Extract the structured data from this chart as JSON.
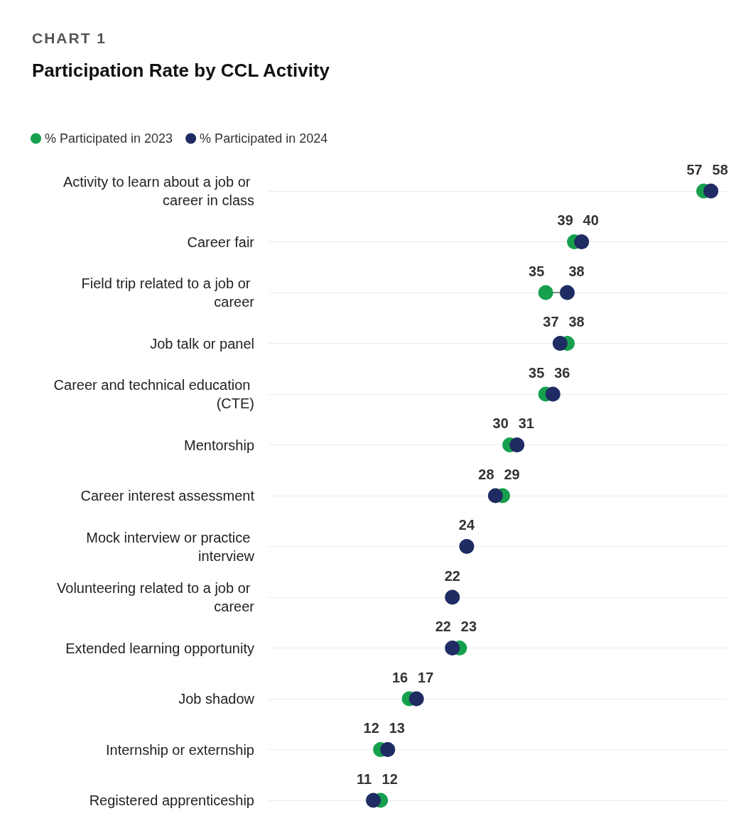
{
  "chart_data": {
    "type": "scatter",
    "subtitle": "CHART 1",
    "title": "Participation Rate by CCL Activity",
    "orientation": "horizontal",
    "data_labels": true,
    "legend": "top left",
    "grid": "y",
    "marker": "circle",
    "categories": [
      "Activity to learn about a job or career in class",
      "Career fair",
      "Field trip related to a job or career",
      "Job talk or panel",
      "Career and technical education (CTE)",
      "Mentorship",
      "Career interest assessment",
      "Mock interview or practice interview",
      "Volunteering related to a job or career",
      "Extended learning opportunity",
      "Job shadow",
      "Internship or externship",
      "Registered apprenticeship"
    ],
    "series": [
      {
        "name": "% Participated in 2023",
        "color": "#16a04e",
        "values": [
          57,
          39,
          35,
          38,
          35,
          30,
          29,
          null,
          null,
          23,
          16,
          12,
          12
        ]
      },
      {
        "name": "% Participated in 2024",
        "color": "#1f2b63",
        "values": [
          58,
          40,
          38,
          37,
          36,
          31,
          28,
          24,
          22,
          22,
          17,
          13,
          11
        ]
      }
    ]
  }
}
